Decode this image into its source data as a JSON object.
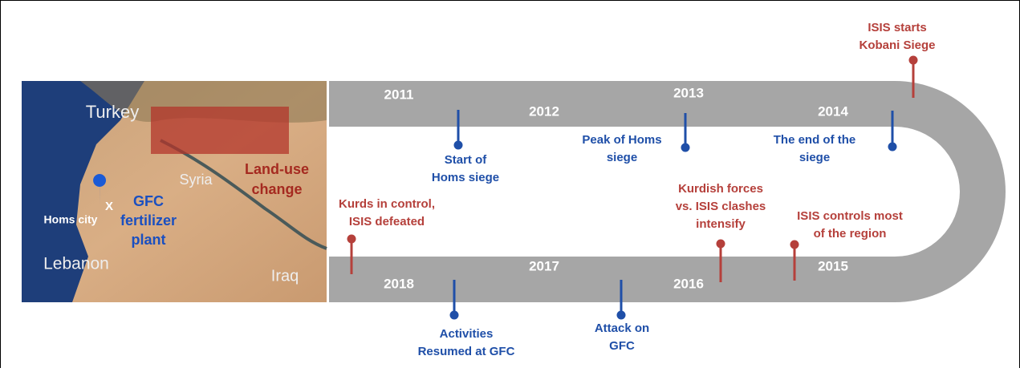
{
  "map": {
    "country_turkey": "Turkey",
    "country_syria": "Syria",
    "country_lebanon": "Lebanon",
    "country_iraq": "Iraq",
    "land_use": [
      "Land-use",
      "change"
    ],
    "homs": "Homs city",
    "marker": "X",
    "gfc": [
      "GFC",
      "fertilizer",
      "plant"
    ]
  },
  "timeline": {
    "years": [
      "2011",
      "2012",
      "2013",
      "2014",
      "2015",
      "2016",
      "2017",
      "2018"
    ],
    "events": [
      {
        "lines": [
          "Start of",
          "Homs siege"
        ]
      },
      {
        "lines": [
          "Peak of Homs",
          "siege"
        ]
      },
      {
        "lines": [
          "The end of the",
          "siege"
        ]
      },
      {
        "lines": [
          "ISIS starts",
          "Kobani Siege"
        ]
      },
      {
        "lines": [
          "ISIS controls most",
          "of the region"
        ]
      },
      {
        "lines": [
          "Kurdish forces",
          "vs. ISIS clashes",
          "intensify"
        ]
      },
      {
        "lines": [
          "Attack on",
          "GFC"
        ]
      },
      {
        "lines": [
          "Activities",
          "Resumed at GFC"
        ]
      },
      {
        "lines": [
          "Kurds in control,",
          "ISIS defeated"
        ]
      }
    ]
  }
}
